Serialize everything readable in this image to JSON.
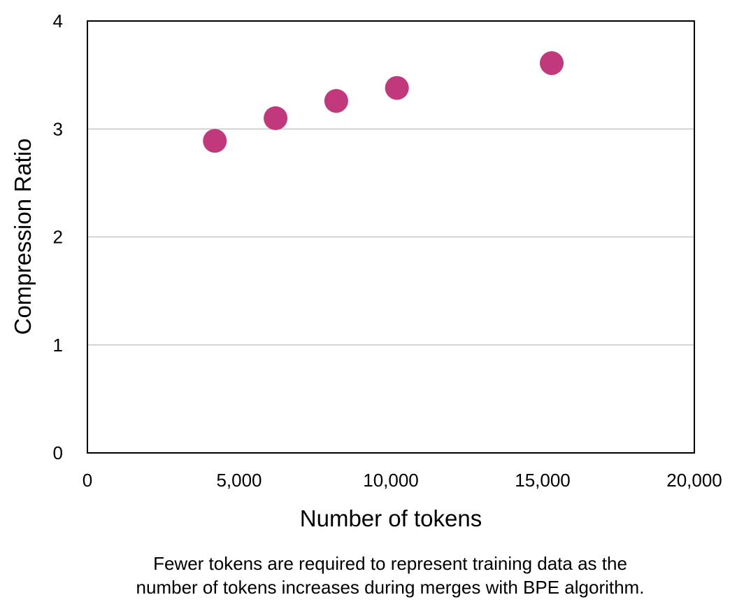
{
  "chart_data": {
    "type": "scatter",
    "xlabel": "Number of tokens",
    "ylabel": "Compression Ratio",
    "xlim": [
      0,
      20000
    ],
    "ylim": [
      0,
      4
    ],
    "x_ticks": [
      0,
      5000,
      10000,
      15000,
      20000
    ],
    "x_tick_labels": [
      "0",
      "5,000",
      "10,000",
      "15,000",
      "20,000"
    ],
    "y_ticks": [
      0,
      1,
      2,
      3,
      4
    ],
    "y_tick_labels": [
      "0",
      "1",
      "2",
      "3",
      "4"
    ],
    "grid": "horizontal",
    "legend": "none",
    "point_color": "#c1387c",
    "points": [
      {
        "x": 4200,
        "y": 2.89
      },
      {
        "x": 6200,
        "y": 3.1
      },
      {
        "x": 8200,
        "y": 3.26
      },
      {
        "x": 10200,
        "y": 3.38
      },
      {
        "x": 15300,
        "y": 3.61
      }
    ]
  },
  "caption": {
    "line1": "Fewer tokens are required to represent training data as the",
    "line2": "number of tokens increases during merges with BPE algorithm."
  }
}
